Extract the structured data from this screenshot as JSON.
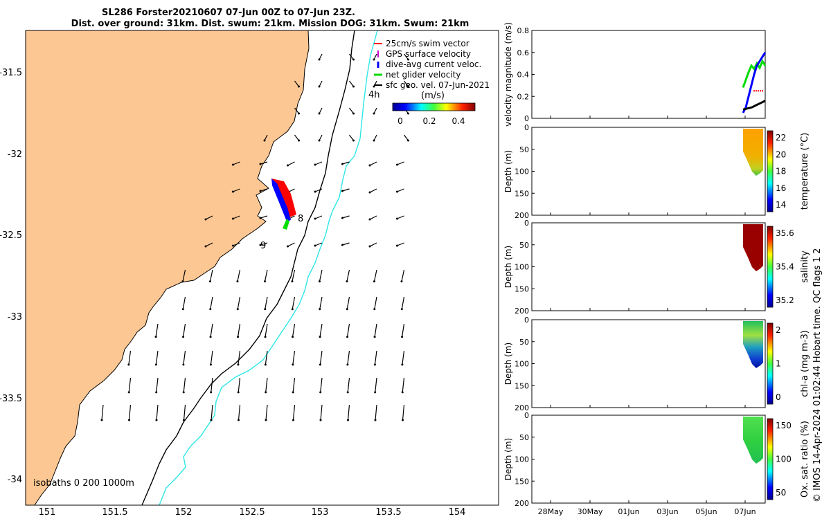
{
  "header": {
    "title_line1": "SL286 Forster20210607 07-Jun 00Z to 07-Jun 23Z.",
    "title_line2": "Dist. over ground: 31km. Dist. swum: 21km. Mission DOG: 31km. Swum: 21km"
  },
  "map": {
    "x_ticks": [
      "151",
      "151.5",
      "152",
      "152.5",
      "153",
      "153.5",
      "154"
    ],
    "y_ticks": [
      "-31.5",
      "-32",
      "-32.5",
      "-33",
      "-33.5",
      "-34"
    ],
    "isobath_label": "isobaths 0  200  1000m",
    "track_labels": [
      "4h",
      "8",
      "9"
    ],
    "legend": [
      {
        "label": "25cm/s swim vector",
        "color": "#ff0000"
      },
      {
        "label": "GPS surface velocity",
        "color": "#cc00cc"
      },
      {
        "label": "dive-avg current veloc.",
        "color": "#0000ff"
      },
      {
        "label": "net glider velocity",
        "color": "#00dd00"
      },
      {
        "label": "sfc geo. vel. 07-Jun-2021",
        "color": "#000000"
      }
    ],
    "colorbar_unit": "(m/s)",
    "colorbar_ticks": [
      "0",
      "0.2",
      "0.4"
    ],
    "colors": {
      "land": "#fdc793",
      "isobath_200": "#000000",
      "isobath_1000": "#2ee6e6"
    }
  },
  "chart_data": [
    {
      "type": "line",
      "ylabel": "velocity magnitude (m/s)",
      "ylim": [
        0,
        0.8
      ],
      "y_ticks": [
        "0",
        "0.2",
        "0.4",
        "0.6",
        "0.8"
      ],
      "x_ticks": [
        "28May",
        "30May",
        "01Jun",
        "03Jun",
        "05Jun",
        "07Jun"
      ],
      "series": [
        {
          "color": "#00dd00",
          "values": [
            0.28,
            0.35,
            0.42,
            0.48,
            0.45,
            0.5,
            0.46,
            0.52,
            0.48
          ]
        },
        {
          "color": "#0000ff",
          "values": [
            0.05,
            0.1,
            0.2,
            0.3,
            0.4,
            0.48,
            0.52,
            0.56,
            0.6
          ]
        },
        {
          "color": "#ff0000",
          "values": [
            0.25,
            0.25,
            0.25,
            0.25
          ]
        },
        {
          "color": "#000000",
          "values": [
            0.08,
            0.09,
            0.1,
            0.12,
            0.14,
            0.16
          ]
        }
      ]
    },
    {
      "type": "heatmap",
      "ylabel": "Depth (m)",
      "ylim": [
        200,
        0
      ],
      "y_ticks": [
        "0",
        "50",
        "100",
        "150",
        "200"
      ],
      "colorbar_label": "temperature (°C)",
      "colorbar_ticks": [
        "22",
        "20",
        "18",
        "16",
        "14"
      ]
    },
    {
      "type": "heatmap",
      "ylabel": "Depth (m)",
      "ylim": [
        200,
        0
      ],
      "y_ticks": [
        "0",
        "50",
        "100",
        "150",
        "200"
      ],
      "colorbar_label": "salinity",
      "colorbar_ticks": [
        "35.6",
        "35.4",
        "35.2"
      ]
    },
    {
      "type": "heatmap",
      "ylabel": "Depth (m)",
      "ylim": [
        200,
        0
      ],
      "y_ticks": [
        "0",
        "50",
        "100",
        "150",
        "200"
      ],
      "colorbar_label": "chl-a (mg m-3)",
      "colorbar_ticks": [
        "2",
        "1",
        "0"
      ]
    },
    {
      "type": "heatmap",
      "ylabel": "Depth (m)",
      "ylim": [
        200,
        0
      ],
      "y_ticks": [
        "0",
        "50",
        "100",
        "150",
        "200"
      ],
      "colorbar_label": "Ox. sat. ratio (%)",
      "colorbar_ticks": [
        "150",
        "100",
        "50"
      ]
    }
  ],
  "footer": {
    "credit": "© IMOS 14-Apr-2024 01:02:44 Hobart time. QC flags 1  2"
  }
}
